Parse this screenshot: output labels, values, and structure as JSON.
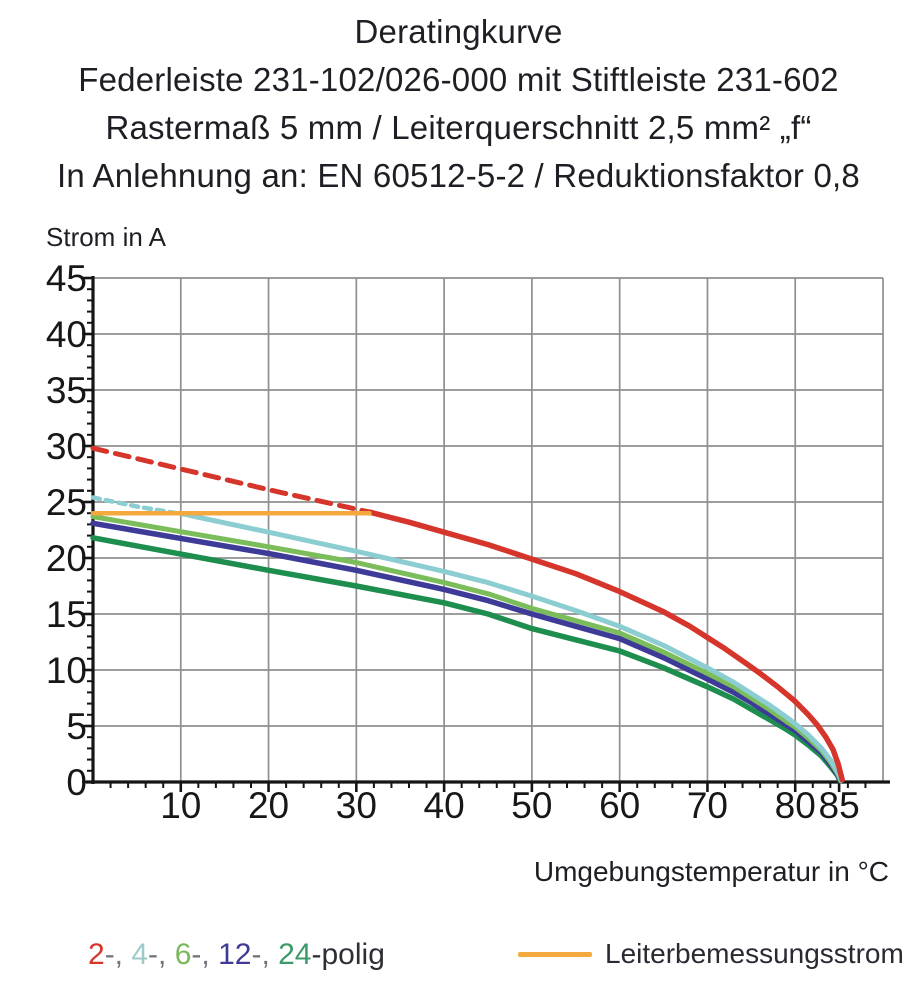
{
  "header": {
    "lines": [
      "Deratingkurve",
      "Federleiste 231-102/026-000 mit Stiftleiste 231-602",
      "Rastermaß 5 mm / Leiterquerschnitt 2,5 mm² „f“",
      "In Anlehnung an: EN 60512-5-2 / Reduktionsfaktor 0,8"
    ]
  },
  "chart_data": {
    "type": "line",
    "title": "Deratingkurve",
    "xlabel": "Umgebungstemperatur in °C",
    "ylabel": "Strom in A",
    "xlim": [
      0,
      90
    ],
    "ylim": [
      0,
      45
    ],
    "grid": {
      "on": true,
      "x_step": 10,
      "y_step": 5,
      "color": "#8f8f8f"
    },
    "x_tick_labels": [
      10,
      20,
      30,
      40,
      50,
      60,
      70,
      80,
      85
    ],
    "y_tick_labels": [
      0,
      5,
      10,
      15,
      20,
      25,
      30,
      35,
      40,
      45
    ],
    "x_minor_step": 2,
    "y_minor_step": 1,
    "axis_color": "#151515",
    "series": [
      {
        "name": "24-polig",
        "segment": "solid",
        "color": "#1e8e4f",
        "width": 5.5,
        "points": [
          [
            0,
            21.8
          ],
          [
            10,
            20.35
          ],
          [
            20,
            18.9
          ],
          [
            30,
            17.5
          ],
          [
            40,
            16.0
          ],
          [
            45,
            15.0
          ],
          [
            50,
            13.7
          ],
          [
            55,
            12.7
          ],
          [
            60,
            11.7
          ],
          [
            65,
            10.2
          ],
          [
            70,
            8.5
          ],
          [
            73,
            7.4
          ],
          [
            75,
            6.5
          ],
          [
            77,
            5.6
          ],
          [
            79,
            4.7
          ],
          [
            80,
            4.2
          ],
          [
            81.5,
            3.3
          ],
          [
            83,
            2.3
          ],
          [
            84,
            1.4
          ],
          [
            84.8,
            0.6
          ],
          [
            85.1,
            0.1
          ]
        ]
      },
      {
        "name": "12-polig",
        "segment": "solid",
        "color": "#3e3a97",
        "width": 5.5,
        "points": [
          [
            0,
            23.1
          ],
          [
            10,
            21.75
          ],
          [
            20,
            20.4
          ],
          [
            30,
            18.9
          ],
          [
            40,
            17.2
          ],
          [
            45,
            16.2
          ],
          [
            50,
            15.0
          ],
          [
            55,
            13.9
          ],
          [
            60,
            12.8
          ],
          [
            65,
            11.1
          ],
          [
            70,
            9.2
          ],
          [
            73,
            8.0
          ],
          [
            75,
            7.1
          ],
          [
            77,
            6.1
          ],
          [
            79,
            5.1
          ],
          [
            80,
            4.6
          ],
          [
            81.5,
            3.6
          ],
          [
            83,
            2.6
          ],
          [
            84,
            1.6
          ],
          [
            84.8,
            0.7
          ],
          [
            85.15,
            0.1
          ]
        ]
      },
      {
        "name": "6-polig",
        "segment": "solid",
        "color": "#7abd5a",
        "width": 5,
        "points": [
          [
            0,
            23.7
          ],
          [
            10,
            22.35
          ],
          [
            20,
            21.0
          ],
          [
            30,
            19.6
          ],
          [
            40,
            17.8
          ],
          [
            45,
            16.8
          ],
          [
            50,
            15.5
          ],
          [
            55,
            14.4
          ],
          [
            60,
            13.3
          ],
          [
            65,
            11.6
          ],
          [
            70,
            9.7
          ],
          [
            73,
            8.5
          ],
          [
            75,
            7.5
          ],
          [
            77,
            6.5
          ],
          [
            79,
            5.4
          ],
          [
            80,
            4.9
          ],
          [
            81.5,
            3.9
          ],
          [
            83,
            2.8
          ],
          [
            84,
            1.8
          ],
          [
            84.8,
            0.8
          ],
          [
            85.2,
            0.1
          ]
        ]
      },
      {
        "name": "4-polig",
        "segment": "solid",
        "color": "#8bcdd1",
        "width": 5,
        "points": [
          [
            11,
            23.8
          ],
          [
            20,
            22.3
          ],
          [
            30,
            20.6
          ],
          [
            40,
            18.8
          ],
          [
            45,
            17.8
          ],
          [
            50,
            16.6
          ],
          [
            55,
            15.3
          ],
          [
            60,
            13.9
          ],
          [
            65,
            12.2
          ],
          [
            70,
            10.2
          ],
          [
            73,
            8.9
          ],
          [
            75,
            7.9
          ],
          [
            77,
            6.9
          ],
          [
            79,
            5.8
          ],
          [
            80,
            5.2
          ],
          [
            81.5,
            4.2
          ],
          [
            83,
            3.0
          ],
          [
            84,
            2.0
          ],
          [
            84.8,
            0.9
          ],
          [
            85.25,
            0.15
          ]
        ]
      },
      {
        "name": "4-polig",
        "segment": "dashed",
        "color": "#8bcdd1",
        "width": 4.5,
        "dash": "7 6",
        "points": [
          [
            0,
            25.4
          ],
          [
            5,
            24.6
          ],
          [
            11,
            23.8
          ]
        ]
      },
      {
        "name": "2-polig",
        "segment": "solid",
        "color": "#d6352b",
        "width": 5.5,
        "points": [
          [
            31.5,
            24.1
          ],
          [
            36,
            23.2
          ],
          [
            40,
            22.3
          ],
          [
            45,
            21.2
          ],
          [
            50,
            19.9
          ],
          [
            55,
            18.6
          ],
          [
            60,
            17.0
          ],
          [
            65,
            15.2
          ],
          [
            68,
            13.9
          ],
          [
            70,
            12.9
          ],
          [
            72,
            11.9
          ],
          [
            74,
            10.8
          ],
          [
            76,
            9.7
          ],
          [
            78,
            8.5
          ],
          [
            80,
            7.2
          ],
          [
            81.5,
            6.0
          ],
          [
            82.5,
            5.1
          ],
          [
            83.5,
            4.0
          ],
          [
            84.3,
            2.9
          ],
          [
            84.9,
            1.6
          ],
          [
            85.35,
            0.2
          ]
        ]
      },
      {
        "name": "2-polig",
        "segment": "dashed",
        "color": "#d6352b",
        "width": 5,
        "dash": "14 9",
        "points": [
          [
            0,
            29.8
          ],
          [
            10,
            27.95
          ],
          [
            20,
            26.1
          ],
          [
            31.5,
            24.1
          ]
        ]
      },
      {
        "name": "Leiterbemessungsstrom",
        "segment": "solid",
        "color": "#f3a93d",
        "width": 4.5,
        "points": [
          [
            0,
            24
          ],
          [
            31.5,
            24
          ]
        ]
      }
    ],
    "legend": {
      "poles": [
        {
          "label": "2",
          "color": "#d6352b"
        },
        {
          "label": "4",
          "color": "#9ccbca"
        },
        {
          "label": "6",
          "color": "#7db760"
        },
        {
          "label": "12",
          "color": "#3e3a97"
        },
        {
          "label": "24",
          "color": "#3c9a6b"
        }
      ],
      "separator": "-, ",
      "separator_color": "#73737d",
      "suffix": "-polig",
      "suffix_color": "#2e2e36",
      "rated": {
        "label": "Leiterbemessungsstrom",
        "color": "#f3a93d"
      }
    }
  }
}
